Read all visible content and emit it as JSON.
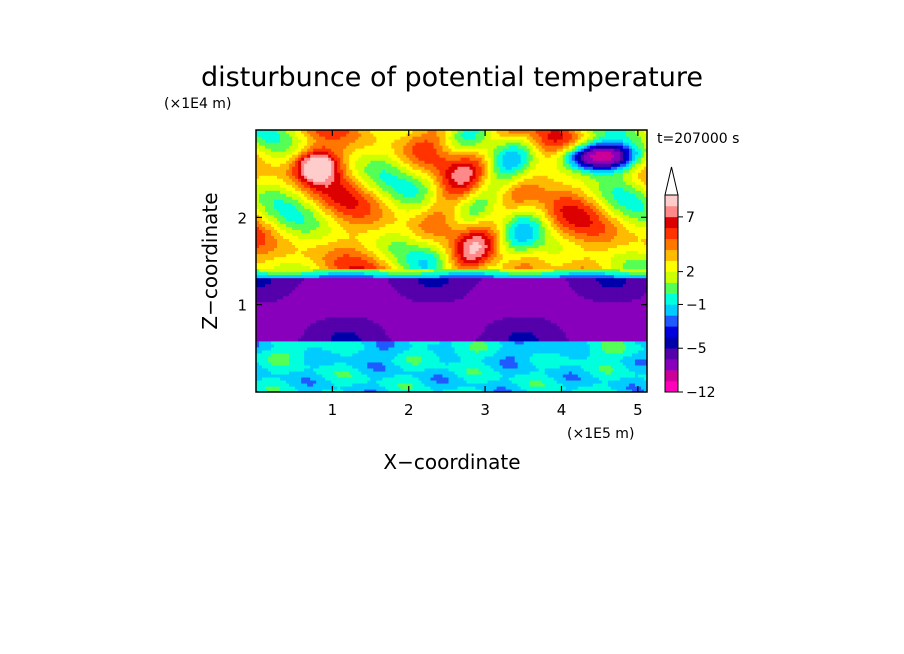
{
  "chart_data": {
    "type": "heatmap",
    "title": "disturbunce of potential temperature",
    "time_label": "t=207000 s",
    "xlabel": "X−coordinate",
    "ylabel": "Z−coordinate",
    "x_unit": "(×1E5 m)",
    "y_unit": "(×1E4 m)",
    "xlim": [
      0,
      5.12
    ],
    "ylim": [
      0,
      3.0
    ],
    "x_ticks": [
      1,
      2,
      3,
      4,
      5
    ],
    "x_tick_labels": [
      "1",
      "2",
      "3",
      "4",
      "5"
    ],
    "y_ticks": [
      1,
      2
    ],
    "y_tick_labels": [
      "1",
      "2"
    ],
    "colorbar": {
      "levels": [
        -12,
        -10,
        -8,
        -6,
        -5,
        -4,
        -3,
        -2,
        -1,
        0,
        1,
        2,
        3,
        4,
        5,
        6,
        7,
        8,
        9
      ],
      "tick_labels": [
        {
          "value": 7,
          "label": "7"
        },
        {
          "value": 2,
          "label": "2"
        },
        {
          "value": -1,
          "label": "−1"
        },
        {
          "value": -5,
          "label": "−5"
        },
        {
          "value": -12,
          "label": "−12"
        }
      ],
      "colors": [
        "#ff00bb",
        "#cc0099",
        "#8800bb",
        "#5500aa",
        "#0000aa",
        "#0000dd",
        "#1e5aff",
        "#00ccff",
        "#00ffdd",
        "#55ff55",
        "#ccff00",
        "#ffff00",
        "#ffbb00",
        "#ff7700",
        "#ff3300",
        "#dd0000",
        "#ff8888",
        "#ffcccc"
      ],
      "extend": "max"
    },
    "field_features": [
      {
        "feature": "cold band",
        "z_range": [
          0.6,
          1.3
        ],
        "value": -6
      },
      {
        "feature": "lower layer",
        "z_range": [
          0.0,
          0.6
        ],
        "value": -1
      },
      {
        "feature": "upper warm layer",
        "z_range": [
          1.4,
          3.0
        ],
        "value": 3
      },
      {
        "feature": "warm maximum",
        "x": 0.8,
        "z": 2.6,
        "value": 9
      },
      {
        "feature": "cold minimum",
        "x": 4.5,
        "z": 2.7,
        "value": -7
      }
    ]
  }
}
